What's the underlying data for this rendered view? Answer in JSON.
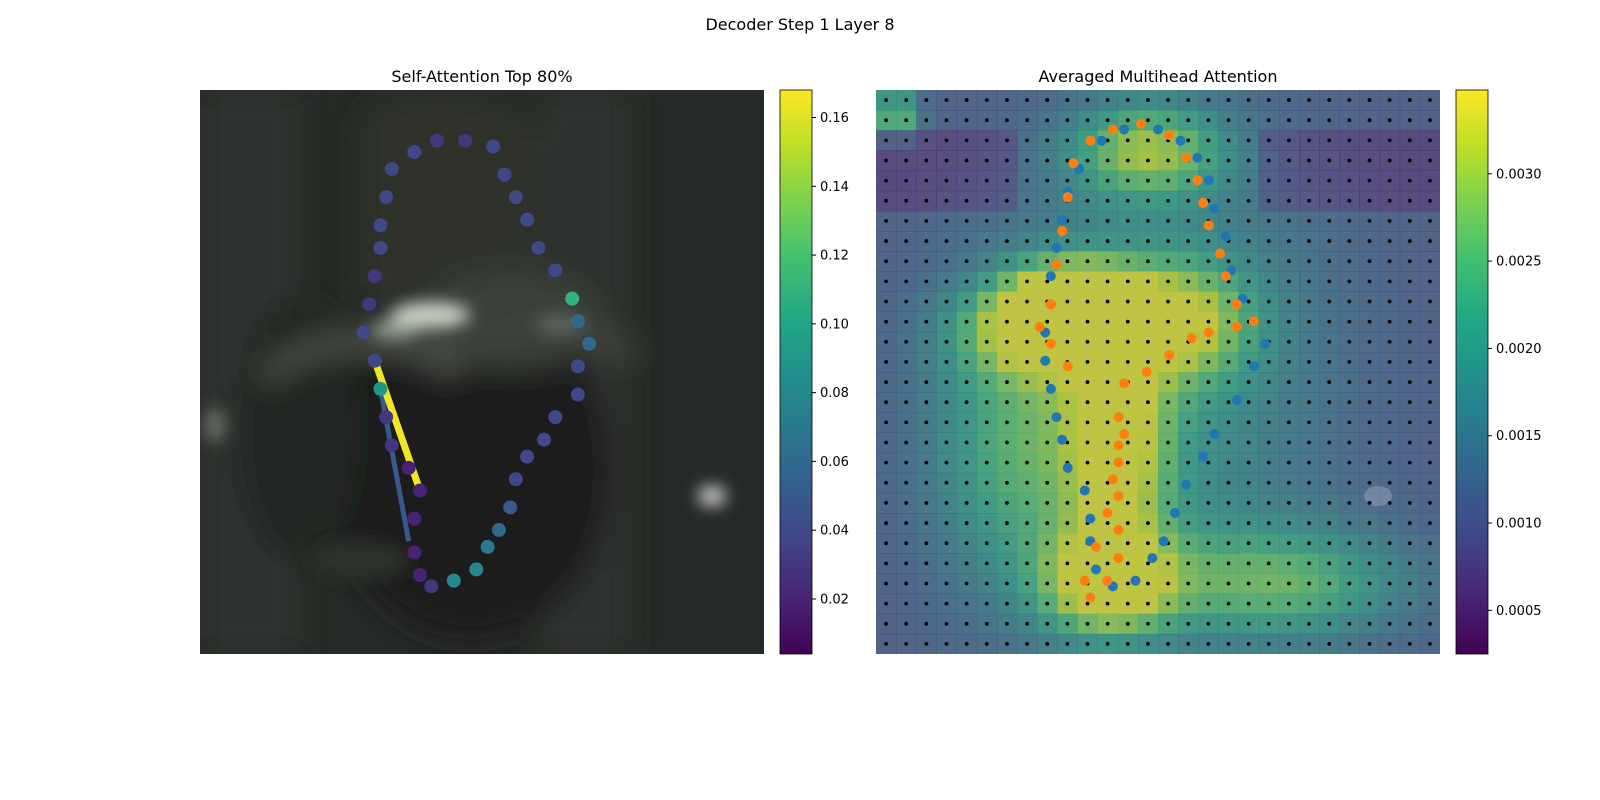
{
  "figure": {
    "title": "Decoder Step 1 Layer 8"
  },
  "chart_data": [
    {
      "type": "scatter",
      "title": "Self-Attention Top 80%",
      "background": "blurred dark grayscale photo",
      "colormap": "viridis",
      "colorbar": {
        "ticks": [
          0.02,
          0.04,
          0.06,
          0.08,
          0.1,
          0.12,
          0.14,
          0.16
        ],
        "tick_labels": [
          "0.02",
          "0.04",
          "0.06",
          "0.08",
          "0.10",
          "0.12",
          "0.14",
          "0.16"
        ],
        "range": [
          0.004,
          0.168
        ]
      },
      "points": [
        {
          "x": 0.42,
          "y": 0.09,
          "value": 0.03
        },
        {
          "x": 0.47,
          "y": 0.09,
          "value": 0.03
        },
        {
          "x": 0.52,
          "y": 0.1,
          "value": 0.04
        },
        {
          "x": 0.54,
          "y": 0.15,
          "value": 0.04
        },
        {
          "x": 0.56,
          "y": 0.19,
          "value": 0.04
        },
        {
          "x": 0.58,
          "y": 0.23,
          "value": 0.04
        },
        {
          "x": 0.6,
          "y": 0.28,
          "value": 0.04
        },
        {
          "x": 0.63,
          "y": 0.32,
          "value": 0.04
        },
        {
          "x": 0.66,
          "y": 0.37,
          "value": 0.11
        },
        {
          "x": 0.67,
          "y": 0.41,
          "value": 0.06
        },
        {
          "x": 0.69,
          "y": 0.45,
          "value": 0.06
        },
        {
          "x": 0.67,
          "y": 0.49,
          "value": 0.04
        },
        {
          "x": 0.67,
          "y": 0.54,
          "value": 0.04
        },
        {
          "x": 0.63,
          "y": 0.58,
          "value": 0.04
        },
        {
          "x": 0.61,
          "y": 0.62,
          "value": 0.04
        },
        {
          "x": 0.58,
          "y": 0.65,
          "value": 0.04
        },
        {
          "x": 0.56,
          "y": 0.69,
          "value": 0.04
        },
        {
          "x": 0.55,
          "y": 0.74,
          "value": 0.05
        },
        {
          "x": 0.53,
          "y": 0.78,
          "value": 0.06
        },
        {
          "x": 0.51,
          "y": 0.81,
          "value": 0.07
        },
        {
          "x": 0.49,
          "y": 0.85,
          "value": 0.08
        },
        {
          "x": 0.45,
          "y": 0.87,
          "value": 0.08
        },
        {
          "x": 0.41,
          "y": 0.88,
          "value": 0.03
        },
        {
          "x": 0.39,
          "y": 0.86,
          "value": 0.02
        },
        {
          "x": 0.38,
          "y": 0.82,
          "value": 0.02
        },
        {
          "x": 0.38,
          "y": 0.76,
          "value": 0.02
        },
        {
          "x": 0.39,
          "y": 0.71,
          "value": 0.02
        },
        {
          "x": 0.37,
          "y": 0.67,
          "value": 0.02
        },
        {
          "x": 0.34,
          "y": 0.63,
          "value": 0.03
        },
        {
          "x": 0.33,
          "y": 0.58,
          "value": 0.03
        },
        {
          "x": 0.32,
          "y": 0.53,
          "value": 0.09
        },
        {
          "x": 0.31,
          "y": 0.48,
          "value": 0.04
        },
        {
          "x": 0.29,
          "y": 0.43,
          "value": 0.04
        },
        {
          "x": 0.3,
          "y": 0.38,
          "value": 0.03
        },
        {
          "x": 0.31,
          "y": 0.33,
          "value": 0.03
        },
        {
          "x": 0.32,
          "y": 0.28,
          "value": 0.04
        },
        {
          "x": 0.32,
          "y": 0.24,
          "value": 0.04
        },
        {
          "x": 0.33,
          "y": 0.19,
          "value": 0.04
        },
        {
          "x": 0.34,
          "y": 0.14,
          "value": 0.04
        },
        {
          "x": 0.38,
          "y": 0.11,
          "value": 0.04
        }
      ],
      "links": [
        {
          "from": [
            0.31,
            0.48
          ],
          "to": [
            0.39,
            0.71
          ],
          "value": 0.165
        },
        {
          "from": [
            0.32,
            0.53
          ],
          "to": [
            0.37,
            0.8
          ],
          "value": 0.05
        }
      ]
    },
    {
      "type": "heatmap",
      "title": "Averaged Multihead Attention",
      "grid": [
        28,
        28
      ],
      "colormap": "viridis",
      "colorbar": {
        "ticks": [
          0.0005,
          0.001,
          0.0015,
          0.002,
          0.0025,
          0.003
        ],
        "tick_labels": [
          "0.0005",
          "0.0010",
          "0.0015",
          "0.0020",
          "0.0025",
          "0.0030"
        ],
        "range": [
          0.00025,
          0.00348
        ]
      },
      "grid_points_color": "#000000",
      "series": [
        {
          "color": "#1f77b4",
          "points": [
            [
              0.4,
              0.09
            ],
            [
              0.44,
              0.07
            ],
            [
              0.5,
              0.07
            ],
            [
              0.54,
              0.09
            ],
            [
              0.57,
              0.12
            ],
            [
              0.59,
              0.16
            ],
            [
              0.6,
              0.21
            ],
            [
              0.62,
              0.26
            ],
            [
              0.63,
              0.32
            ],
            [
              0.65,
              0.37
            ],
            [
              0.67,
              0.41
            ],
            [
              0.69,
              0.45
            ],
            [
              0.67,
              0.49
            ],
            [
              0.64,
              0.55
            ],
            [
              0.6,
              0.61
            ],
            [
              0.58,
              0.65
            ],
            [
              0.55,
              0.7
            ],
            [
              0.53,
              0.75
            ],
            [
              0.51,
              0.8
            ],
            [
              0.49,
              0.83
            ],
            [
              0.46,
              0.87
            ],
            [
              0.42,
              0.88
            ],
            [
              0.39,
              0.85
            ],
            [
              0.38,
              0.8
            ],
            [
              0.38,
              0.76
            ],
            [
              0.37,
              0.71
            ],
            [
              0.34,
              0.67
            ],
            [
              0.33,
              0.62
            ],
            [
              0.32,
              0.58
            ],
            [
              0.31,
              0.53
            ],
            [
              0.3,
              0.48
            ],
            [
              0.3,
              0.43
            ],
            [
              0.31,
              0.38
            ],
            [
              0.31,
              0.33
            ],
            [
              0.32,
              0.28
            ],
            [
              0.33,
              0.23
            ],
            [
              0.34,
              0.18
            ],
            [
              0.36,
              0.14
            ]
          ]
        },
        {
          "color": "#ff7f0e",
          "points": [
            [
              0.38,
              0.09
            ],
            [
              0.42,
              0.07
            ],
            [
              0.47,
              0.06
            ],
            [
              0.52,
              0.08
            ],
            [
              0.55,
              0.12
            ],
            [
              0.57,
              0.16
            ],
            [
              0.58,
              0.2
            ],
            [
              0.59,
              0.24
            ],
            [
              0.61,
              0.29
            ],
            [
              0.62,
              0.33
            ],
            [
              0.64,
              0.38
            ],
            [
              0.67,
              0.41
            ],
            [
              0.64,
              0.42
            ],
            [
              0.59,
              0.43
            ],
            [
              0.56,
              0.44
            ],
            [
              0.52,
              0.47
            ],
            [
              0.48,
              0.5
            ],
            [
              0.44,
              0.52
            ],
            [
              0.43,
              0.58
            ],
            [
              0.44,
              0.61
            ],
            [
              0.43,
              0.63
            ],
            [
              0.43,
              0.66
            ],
            [
              0.42,
              0.69
            ],
            [
              0.43,
              0.72
            ],
            [
              0.41,
              0.75
            ],
            [
              0.43,
              0.78
            ],
            [
              0.39,
              0.81
            ],
            [
              0.43,
              0.83
            ],
            [
              0.41,
              0.87
            ],
            [
              0.37,
              0.87
            ],
            [
              0.38,
              0.9
            ],
            [
              0.34,
              0.49
            ],
            [
              0.31,
              0.45
            ],
            [
              0.29,
              0.42
            ],
            [
              0.31,
              0.38
            ],
            [
              0.32,
              0.31
            ],
            [
              0.33,
              0.25
            ],
            [
              0.34,
              0.19
            ],
            [
              0.35,
              0.13
            ]
          ]
        }
      ]
    }
  ]
}
